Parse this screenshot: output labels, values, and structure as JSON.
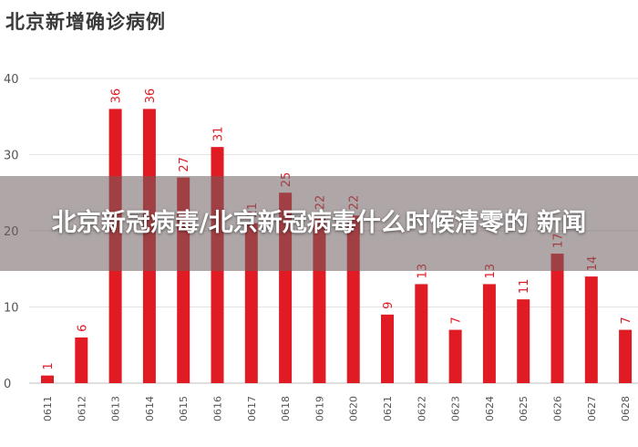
{
  "chart_data": {
    "type": "bar",
    "title": "北京新增确诊病例",
    "xlabel": "",
    "ylabel": "",
    "categories": [
      "0611",
      "0612",
      "0613",
      "0614",
      "0615",
      "0616",
      "0617",
      "0618",
      "0619",
      "0620",
      "0621",
      "0622",
      "0623",
      "0624",
      "0625",
      "0626",
      "0627",
      "0628"
    ],
    "values": [
      1,
      6,
      36,
      36,
      27,
      31,
      21,
      25,
      22,
      22,
      9,
      13,
      7,
      13,
      11,
      17,
      14,
      7
    ],
    "ylim": [
      0,
      40
    ],
    "yticks": [
      0,
      10,
      20,
      30,
      40
    ],
    "grid": true,
    "colors": {
      "bar": "#e01b24",
      "label": "#e01b24",
      "grid": "#e3e3e3",
      "axis_text": "#555555"
    }
  },
  "overlay": {
    "headline": "北京新冠病毒/北京新冠病毒什么时候清零的 新闻"
  }
}
